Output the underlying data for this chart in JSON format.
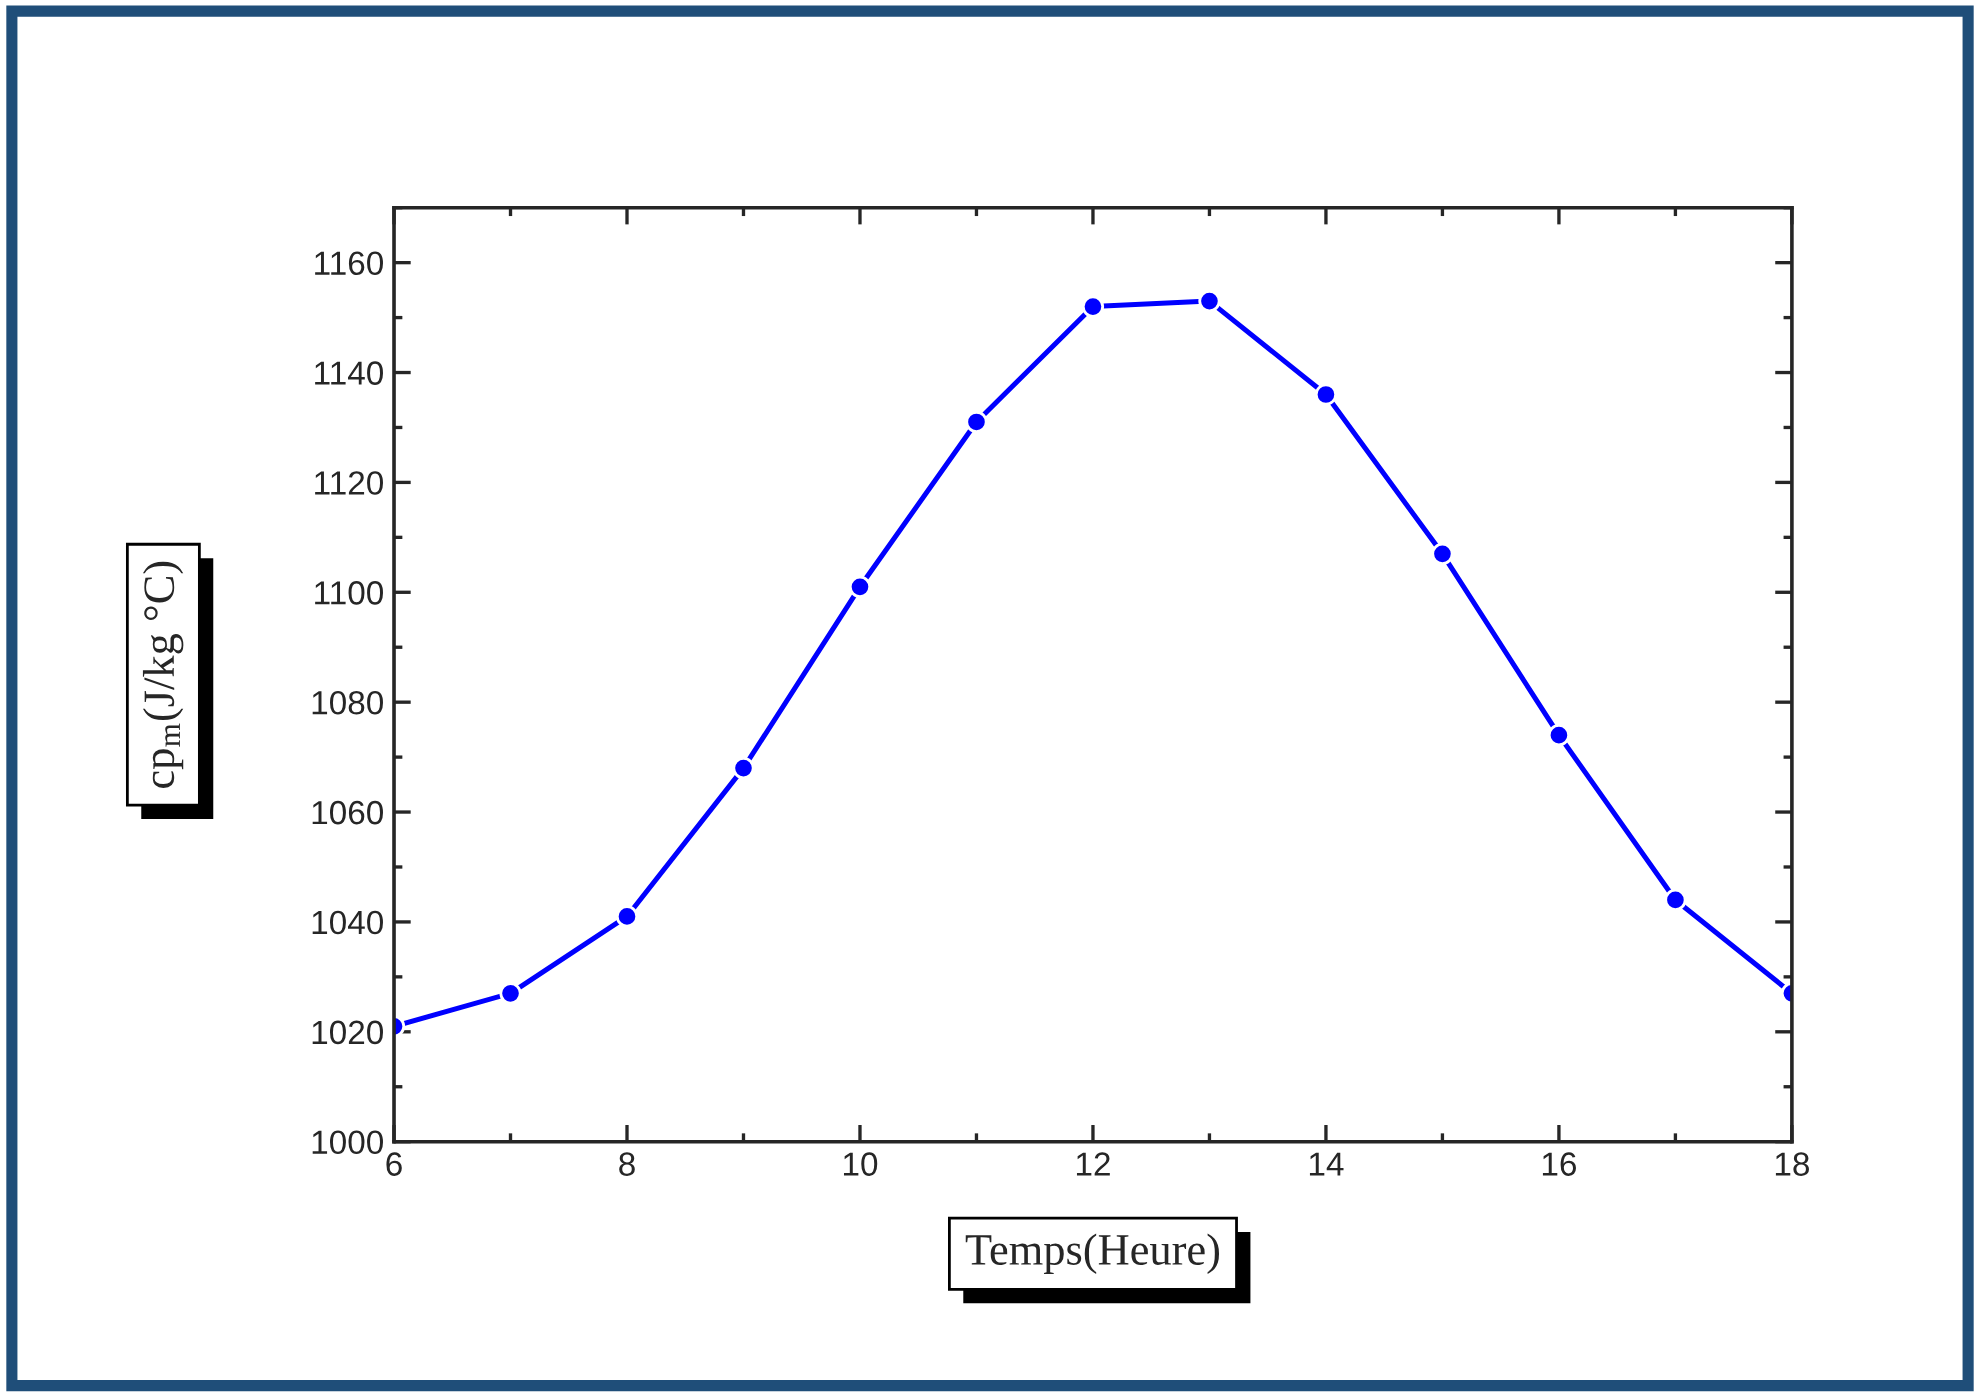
{
  "chart_data": {
    "type": "line",
    "xlabel": "Temps(Heure)",
    "ylabel": "cp$_{m}$(J/kg °C)",
    "x": [
      6,
      7,
      8,
      9,
      10,
      11,
      12,
      13,
      14,
      15,
      16,
      17,
      18
    ],
    "series": [
      {
        "color": "#0000ff",
        "values": [
          1021,
          1027,
          1041,
          1068,
          1101,
          1131,
          1152,
          1153,
          1136,
          1107,
          1074,
          1044,
          1027
        ]
      }
    ],
    "xlim": [
      6,
      18
    ],
    "xticks": [
      6,
      8,
      10,
      12,
      14,
      16,
      18
    ],
    "ylim": [
      1000,
      1170
    ],
    "yticks": [
      1000,
      1020,
      1040,
      1060,
      1080,
      1100,
      1120,
      1140,
      1160
    ],
    "marker": "circle",
    "line_style": "solid",
    "grid": false
  }
}
